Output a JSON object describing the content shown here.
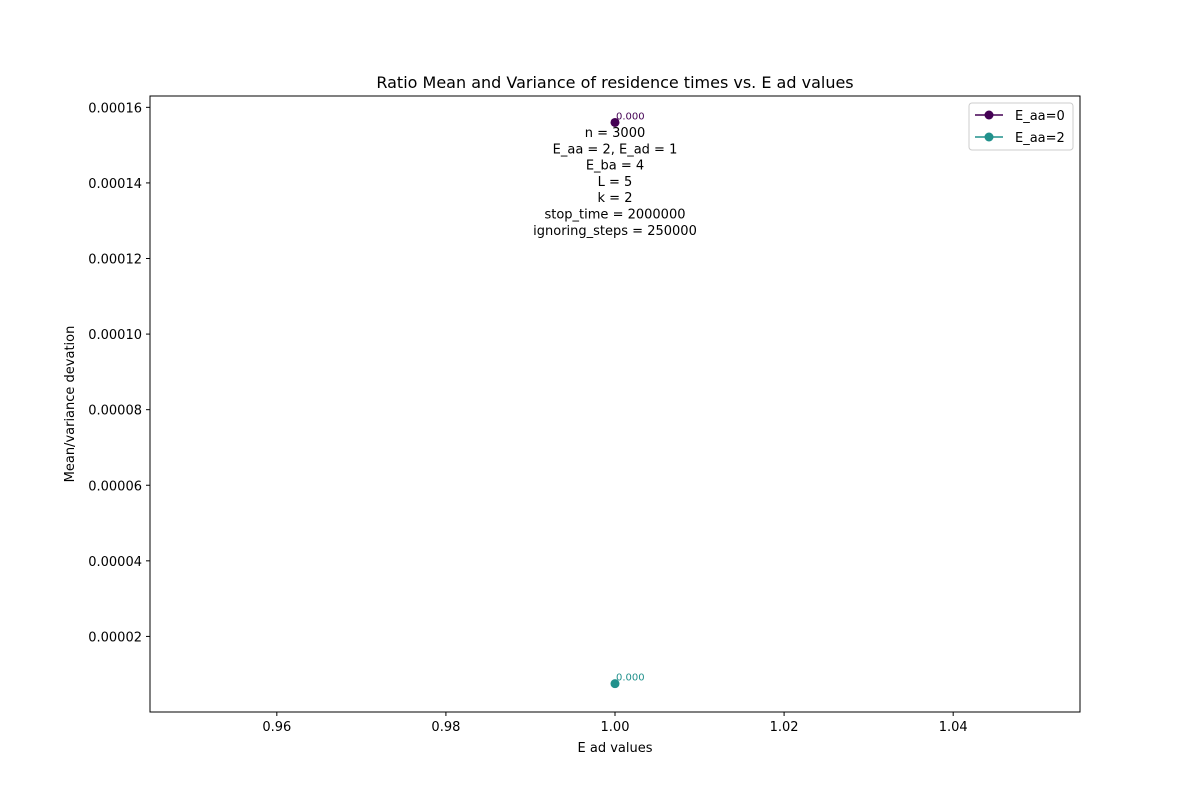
{
  "chart_data": {
    "type": "line",
    "title": "Ratio Mean and Variance of residence times vs. E ad values",
    "xlabel": "E ad values",
    "ylabel": "Mean/variance devation",
    "xlim": [
      0.945,
      1.055
    ],
    "ylim": [
      0.0,
      0.000163
    ],
    "xticks": [
      0.96,
      0.98,
      1.0,
      1.02,
      1.04
    ],
    "xtick_labels": [
      "0.96",
      "0.98",
      "1.00",
      "1.02",
      "1.04"
    ],
    "yticks": [
      2e-05,
      4e-05,
      6e-05,
      8e-05,
      0.0001,
      0.00012,
      0.00014,
      0.00016
    ],
    "ytick_labels": [
      "0.00002",
      "0.00004",
      "0.00006",
      "0.00008",
      "0.00010",
      "0.00012",
      "0.00014",
      "0.00016"
    ],
    "grid": false,
    "legend_position": "top-right",
    "series": [
      {
        "name": "E_aa=0",
        "color": "#440154",
        "x": [
          1.0
        ],
        "y": [
          0.000156
        ],
        "labels": [
          "0.000"
        ]
      },
      {
        "name": "E_aa=2",
        "color": "#21918c",
        "x": [
          1.0
        ],
        "y": [
          7.5e-06
        ],
        "labels": [
          "0.000"
        ]
      }
    ],
    "annotation_lines": [
      "n = 3000",
      "E_aa = 2, E_ad = 1",
      "E_ba = 4",
      "L = 5",
      "k = 2",
      "stop_time = 2000000",
      "ignoring_steps = 250000"
    ]
  }
}
